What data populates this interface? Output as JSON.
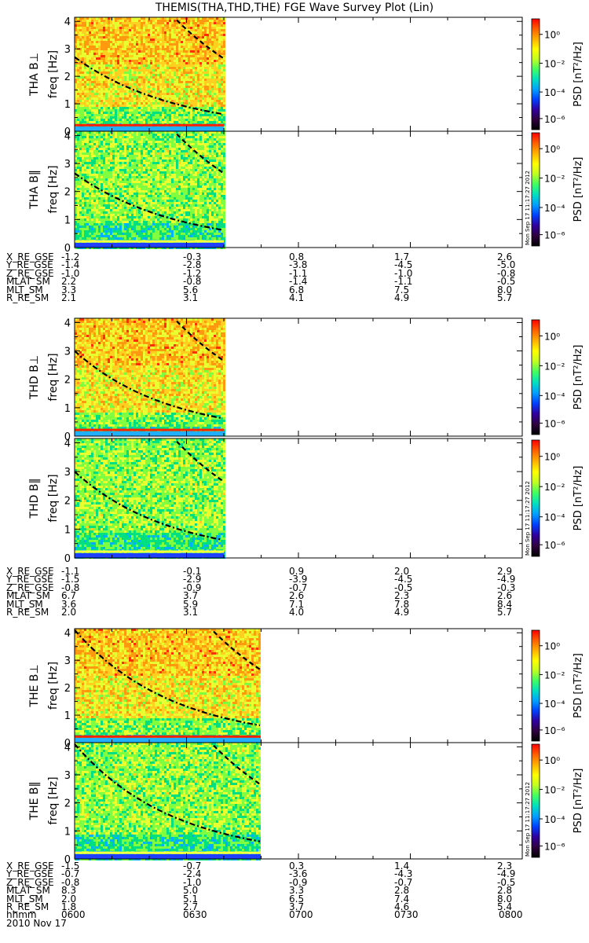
{
  "title": "THEMIS(THA,THD,THE) FGE Wave Survey Plot (Lin)",
  "colorbar": {
    "label": "PSD [nT²/Hz]",
    "ticks": [
      "10⁰",
      "10⁻²",
      "10⁻⁴",
      "10⁻⁶"
    ],
    "side_stamp": "Mon Sep 17 11:17:27 2012",
    "colors": [
      "#ff0000",
      "#ff8000",
      "#ffff00",
      "#00ff40",
      "#00c0ff",
      "#0000ff",
      "#400060",
      "#000000"
    ]
  },
  "chart_data": {
    "type": "heatmap",
    "time_axis": {
      "label": "hhmm",
      "ticks": [
        "0600",
        "0630",
        "0700",
        "0730",
        "0800"
      ],
      "date": "2010 Nov 17"
    },
    "panels": [
      {
        "ylabel": "THA B⊥",
        "yunit": "freq [Hz]",
        "yticks": [
          "0",
          "1",
          "2",
          "3",
          "4"
        ],
        "data_end": "0643"
      },
      {
        "ylabel": "THA B‖",
        "yunit": "freq [Hz]",
        "yticks": [
          "0",
          "1",
          "2",
          "3",
          "4"
        ],
        "data_end": "0643"
      },
      {
        "ylabel": "THD B⊥",
        "yunit": "freq [Hz]",
        "yticks": [
          "0",
          "1",
          "2",
          "3",
          "4"
        ],
        "data_end": "0643"
      },
      {
        "ylabel": "THD B‖",
        "yunit": "freq [Hz]",
        "yticks": [
          "0",
          "1",
          "2",
          "3",
          "4"
        ],
        "data_end": "0643"
      },
      {
        "ylabel": "THE B⊥",
        "yunit": "freq [Hz]",
        "yticks": [
          "0",
          "1",
          "2",
          "3",
          "4"
        ],
        "data_end": "0652"
      },
      {
        "ylabel": "THE B‖",
        "yunit": "freq [Hz]",
        "yticks": [
          "0",
          "1",
          "2",
          "3",
          "4"
        ],
        "data_end": "0652"
      }
    ],
    "ephemeris": [
      {
        "probe": "THA",
        "rows": [
          {
            "name": "X_RE_GSE",
            "values": [
              "-1.2",
              "-0.3",
              "0.8",
              "1.7",
              "2.6"
            ]
          },
          {
            "name": "Y_RE_GSE",
            "values": [
              "-1.4",
              "-2.8",
              "-3.8",
              "-4.5",
              "-5.0"
            ]
          },
          {
            "name": "Z_RE_GSE",
            "values": [
              "-1.0",
              "-1.2",
              "-1.1",
              "-1.0",
              "-0.8"
            ]
          },
          {
            "name": "MLAT_SM",
            "values": [
              "2.2",
              "-0.8",
              "-1.4",
              "-1.1",
              "-0.5"
            ]
          },
          {
            "name": "MLT_SM",
            "values": [
              "3.3",
              "5.6",
              "6.8",
              "7.5",
              "8.0"
            ]
          },
          {
            "name": "R_RE_SM",
            "values": [
              "2.1",
              "3.1",
              "4.1",
              "4.9",
              "5.7"
            ]
          }
        ]
      },
      {
        "probe": "THD",
        "rows": [
          {
            "name": "X_RE_GSE",
            "values": [
              "-1.1",
              "-0.1",
              "0.9",
              "2.0",
              "2.9"
            ]
          },
          {
            "name": "Y_RE_GSE",
            "values": [
              "-1.5",
              "-2.9",
              "-3.9",
              "-4.5",
              "-4.9"
            ]
          },
          {
            "name": "Z_RE_GSE",
            "values": [
              "-0.8",
              "-0.9",
              "-0.7",
              "-0.5",
              "-0.3"
            ]
          },
          {
            "name": "MLAT_SM",
            "values": [
              "6.7",
              "3.7",
              "2.6",
              "2.3",
              "2.6"
            ]
          },
          {
            "name": "MLT_SM",
            "values": [
              "3.6",
              "5.9",
              "7.1",
              "7.8",
              "8.4"
            ]
          },
          {
            "name": "R_RE_SM",
            "values": [
              "2.0",
              "3.1",
              "4.0",
              "4.9",
              "5.7"
            ]
          }
        ]
      },
      {
        "probe": "THE",
        "rows": [
          {
            "name": "X_RE_GSE",
            "values": [
              "-1.5",
              "-0.7",
              "0.3",
              "1.4",
              "2.3"
            ]
          },
          {
            "name": "Y_RE_GSE",
            "values": [
              "-0.7",
              "-2.4",
              "-3.6",
              "-4.3",
              "-4.9"
            ]
          },
          {
            "name": "Z_RE_GSE",
            "values": [
              "-0.8",
              "-1.0",
              "-0.9",
              "-0.7",
              "-0.5"
            ]
          },
          {
            "name": "MLAT_SM",
            "values": [
              "8.3",
              "5.0",
              "3.3",
              "2.8",
              "2.8"
            ]
          },
          {
            "name": "MLT_SM",
            "values": [
              "2.0",
              "5.1",
              "6.5",
              "7.4",
              "8.0"
            ]
          },
          {
            "name": "R_RE_SM",
            "values": [
              "1.8",
              "2.7",
              "3.7",
              "4.6",
              "5.4"
            ]
          }
        ]
      }
    ]
  }
}
